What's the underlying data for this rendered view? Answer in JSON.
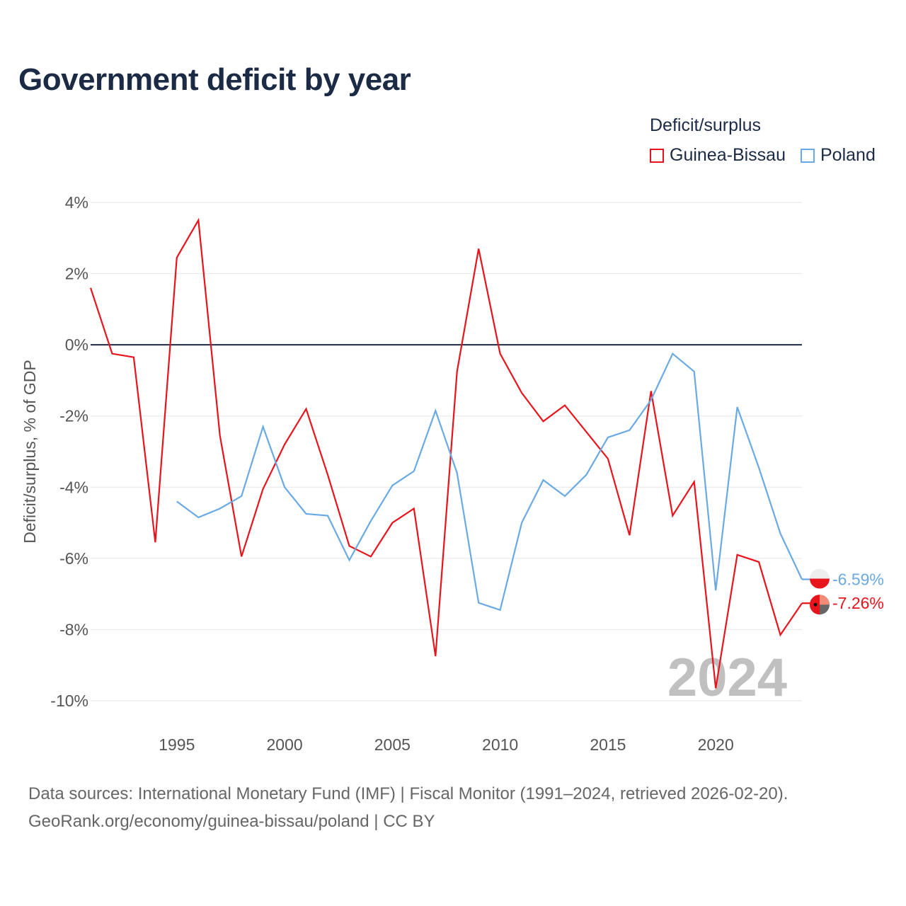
{
  "colors": {
    "guinea_bissau": "#e8141c",
    "poland": "#6aaae4",
    "zero_line": "#1c2b45",
    "grid": "#e6e6e6",
    "year_watermark": "#c0c0c0"
  },
  "legend": {
    "title": "Deficit/surplus",
    "items": [
      "Guinea-Bissau",
      "Poland"
    ]
  },
  "footer": {
    "source": "Data sources: International Monetary Fund (IMF) | Fiscal Monitor (1991–2024, retrieved 2026-02-20).",
    "link": "GeoRank.org/economy/guinea-bissau/poland | CC BY"
  },
  "chart_data": {
    "type": "line",
    "title": "Government deficit by year",
    "xlabel": "",
    "ylabel": "Deficit/surplus, % of GDP",
    "xlim": [
      1991,
      2024
    ],
    "ylim": [
      -10,
      4
    ],
    "x_ticks": [
      1995,
      2000,
      2005,
      2010,
      2015,
      2020
    ],
    "y_ticks": [
      {
        "value": 4,
        "label": "4%"
      },
      {
        "value": 2,
        "label": "2%"
      },
      {
        "value": 0,
        "label": "0%"
      },
      {
        "value": -2,
        "label": "-2%"
      },
      {
        "value": -4,
        "label": "-4%"
      },
      {
        "value": -6,
        "label": "-6%"
      },
      {
        "value": -8,
        "label": "-8%"
      },
      {
        "value": -10,
        "label": "-10%"
      }
    ],
    "year_watermark": "2024",
    "series": [
      {
        "name": "Guinea-Bissau",
        "end_label": "-7.26%",
        "x": [
          1991,
          1992,
          1993,
          1994,
          1995,
          1996,
          1997,
          1998,
          1999,
          2000,
          2001,
          2002,
          2003,
          2004,
          2005,
          2006,
          2007,
          2008,
          2009,
          2010,
          2011,
          2012,
          2013,
          2014,
          2015,
          2016,
          2017,
          2018,
          2019,
          2020,
          2021,
          2022,
          2023,
          2024
        ],
        "values": [
          1.6,
          -0.25,
          -0.35,
          -5.55,
          2.45,
          3.5,
          -2.55,
          -5.95,
          -4.05,
          -2.8,
          -1.8,
          -3.65,
          -5.65,
          -5.95,
          -5.0,
          -4.6,
          -8.75,
          -0.75,
          2.7,
          -0.25,
          -1.35,
          -2.15,
          -1.7,
          -2.45,
          -3.2,
          -5.35,
          -1.3,
          -4.8,
          -3.85,
          -9.65,
          -5.9,
          -6.1,
          -8.15,
          -7.26
        ]
      },
      {
        "name": "Poland",
        "end_label": "-6.59%",
        "x": [
          1995,
          1996,
          1997,
          1998,
          1999,
          2000,
          2001,
          2002,
          2003,
          2004,
          2005,
          2006,
          2007,
          2008,
          2009,
          2010,
          2011,
          2012,
          2013,
          2014,
          2015,
          2016,
          2017,
          2018,
          2019,
          2020,
          2021,
          2022,
          2023,
          2024
        ],
        "values": [
          -4.4,
          -4.85,
          -4.6,
          -4.25,
          -2.3,
          -4.0,
          -4.75,
          -4.8,
          -6.05,
          -4.95,
          -3.95,
          -3.55,
          -1.85,
          -3.6,
          -7.25,
          -7.45,
          -5.0,
          -3.8,
          -4.25,
          -3.65,
          -2.6,
          -2.4,
          -1.55,
          -0.25,
          -0.75,
          -6.9,
          -1.75,
          -3.45,
          -5.3,
          -6.59
        ]
      }
    ]
  }
}
